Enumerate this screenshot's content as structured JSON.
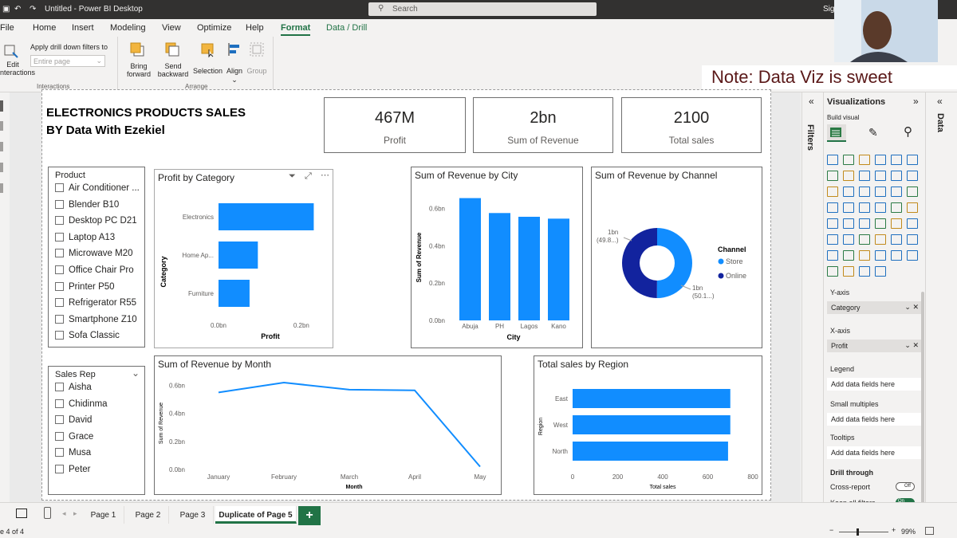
{
  "window": {
    "title": "Untitled - Power BI Desktop",
    "search_placeholder": "Search",
    "user": "Sig"
  },
  "menu": [
    "File",
    "Home",
    "Insert",
    "Modeling",
    "View",
    "Optimize",
    "Help",
    "Format",
    "Data / Drill"
  ],
  "menu_active": "Format",
  "ribbon": {
    "edit_interactions": "Edit\ninteractions",
    "drill_filters_label": "Apply drill down filters to",
    "drill_filters_placeholder": "Entire page",
    "group_interactions": "Interactions",
    "bring_forward": "Bring\nforward",
    "send_backward": "Send\nbackward",
    "selection": "Selection",
    "align": "Align",
    "group": "Group",
    "group_arrange": "Arrange"
  },
  "note": "Note: Data Viz is sweet",
  "report": {
    "title_line1": "ELECTRONICS PRODUCTS SALES",
    "title_line2": "BY Data With Ezekiel",
    "kpis": [
      {
        "value": "467M",
        "label": "Profit"
      },
      {
        "value": "2bn",
        "label": "Sum of Revenue"
      },
      {
        "value": "2100",
        "label": "Total sales"
      }
    ],
    "product_slicer": {
      "title": "Product",
      "items": [
        "Air Conditioner ...",
        "Blender B10",
        "Desktop PC D21",
        "Laptop A13",
        "Microwave M20",
        "Office Chair Pro",
        "Printer P50",
        "Refrigerator R55",
        "Smartphone Z10",
        "Sofa Classic"
      ]
    },
    "salesrep_slicer": {
      "title": "Sales Rep",
      "items": [
        "Aisha",
        "Chidinma",
        "David",
        "Grace",
        "Musa",
        "Peter"
      ]
    }
  },
  "chart_data": [
    {
      "id": "profit_by_category",
      "type": "bar",
      "orientation": "horizontal",
      "title": "Profit by Category",
      "categories": [
        "Electronics",
        "Home Ap...",
        "Furniture"
      ],
      "values": [
        0.23,
        0.095,
        0.075
      ],
      "xlabel": "Profit",
      "ylabel": "Category",
      "xticks": [
        "0.0bn",
        "0.2bn"
      ],
      "xlim": [
        0,
        0.26
      ],
      "color": "#118dff"
    },
    {
      "id": "revenue_by_city",
      "type": "bar",
      "title": "Sum of Revenue by City",
      "categories": [
        "Abuja",
        "PH",
        "Lagos",
        "Kano"
      ],
      "values": [
        0.655,
        0.575,
        0.555,
        0.545
      ],
      "xlabel": "City",
      "ylabel": "Sum of Revenue",
      "yticks": [
        "0.0bn",
        "0.2bn",
        "0.4bn",
        "0.6bn"
      ],
      "ylim": [
        0,
        0.7
      ],
      "color": "#118dff"
    },
    {
      "id": "revenue_by_channel",
      "type": "pie",
      "donut": true,
      "title": "Sum of Revenue by Channel",
      "legend_title": "Channel",
      "categories": [
        "Store",
        "Online"
      ],
      "values": [
        50.1,
        49.9
      ],
      "data_labels": [
        {
          "line1": "1bn",
          "line2": "(50.1...)"
        },
        {
          "line1": "1bn",
          "line2": "(49.8...)"
        }
      ],
      "colors": [
        "#118dff",
        "#12239e"
      ],
      "legend_position": "right"
    },
    {
      "id": "revenue_by_month",
      "type": "line",
      "title": "Sum of Revenue by Month",
      "categories": [
        "January",
        "February",
        "March",
        "April",
        "May"
      ],
      "values": [
        0.55,
        0.62,
        0.57,
        0.565,
        0.02
      ],
      "xlabel": "Month",
      "ylabel": "Sum of Revenue",
      "yticks": [
        "0.0bn",
        "0.2bn",
        "0.4bn",
        "0.6bn"
      ],
      "ylim": [
        0,
        0.66
      ],
      "color": "#118dff"
    },
    {
      "id": "sales_by_region",
      "type": "bar",
      "orientation": "horizontal",
      "title": "Total sales by Region",
      "categories": [
        "East",
        "West",
        "North"
      ],
      "values": [
        700,
        700,
        690
      ],
      "xlabel": "Total sales",
      "ylabel": "Region",
      "xticks": [
        "0",
        "200",
        "400",
        "600",
        "800"
      ],
      "xlim": [
        0,
        800
      ],
      "color": "#118dff"
    }
  ],
  "visualizations_pane": {
    "title": "Visualizations",
    "build_visual": "Build visual",
    "filters_tab": "Filters",
    "data_tab": "Data",
    "wells": [
      {
        "label": "Y-axis",
        "value": "Category"
      },
      {
        "label": "X-axis",
        "value": "Profit"
      },
      {
        "label": "Legend",
        "value": "Add data fields here"
      },
      {
        "label": "Small multiples",
        "value": "Add data fields here"
      },
      {
        "label": "Tooltips",
        "value": "Add data fields here"
      }
    ],
    "drill_through": "Drill through",
    "cross_report": "Cross-report",
    "cross_report_state": "Off",
    "keep_filters": "Keep all filters",
    "keep_filters_state": "On"
  },
  "tabs": [
    "Page 1",
    "Page 2",
    "Page 3",
    "Duplicate of Page 5"
  ],
  "active_tab": "Duplicate of Page 5",
  "status": {
    "page": "e 4 of 4",
    "zoom": "99%"
  }
}
